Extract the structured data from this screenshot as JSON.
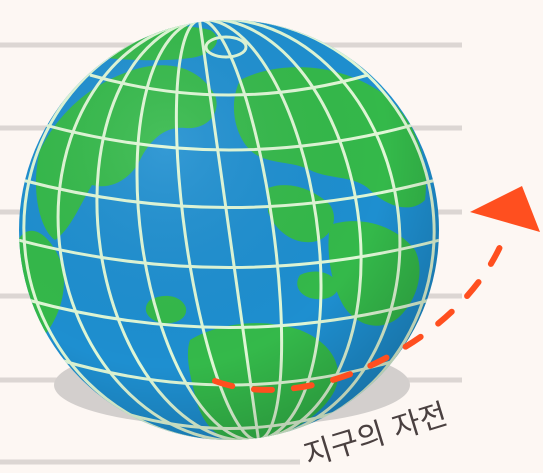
{
  "diagram": {
    "caption": "지구의 자전",
    "colors": {
      "background": "#fdf7f3",
      "ruled_lines": "#dcd6d3",
      "ocean": "#1e8fd0",
      "land": "#34b94a",
      "gridlines": "#dff7d6",
      "shadow": "#d3cfcd",
      "rotation_arrow": "#ff4f1f",
      "caption_text": "#4a4040"
    }
  }
}
